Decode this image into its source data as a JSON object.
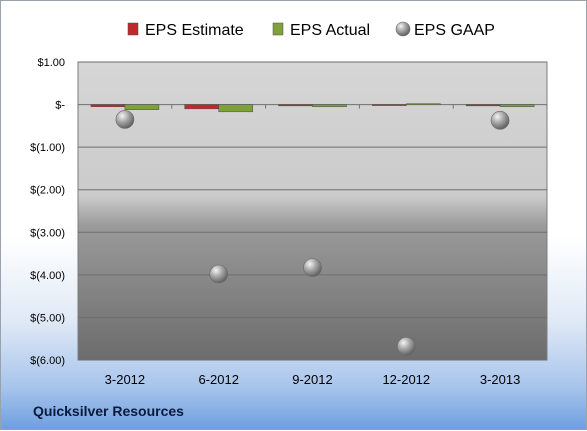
{
  "company": "Quicksilver Resources",
  "chart_data": {
    "type": "bar",
    "categories": [
      "3-2012",
      "6-2012",
      "9-2012",
      "12-2012",
      "3-2013"
    ],
    "series": [
      {
        "name": "EPS Estimate",
        "type": "bar",
        "color": "#c0282d",
        "values": [
          -0.05,
          -0.1,
          -0.03,
          -0.02,
          -0.03
        ]
      },
      {
        "name": "EPS Actual",
        "type": "bar",
        "color": "#7fa13a",
        "values": [
          -0.12,
          -0.17,
          -0.05,
          0.02,
          -0.05
        ]
      },
      {
        "name": "EPS GAAP",
        "type": "scatter",
        "color": "#9a9a9a",
        "values": [
          -0.35,
          -3.98,
          -3.83,
          -5.68,
          -0.37
        ]
      }
    ],
    "ylim": [
      -6,
      1
    ],
    "yticks": [
      1,
      0,
      -1,
      -2,
      -3,
      -4,
      -5,
      -6
    ],
    "ytick_labels": [
      "$1.00",
      "$-",
      "$(1.00)",
      "$(2.00)",
      "$(3.00)",
      "$(4.00)",
      "$(5.00)",
      "$(6.00)"
    ],
    "legend_position": "top",
    "grid": true
  }
}
